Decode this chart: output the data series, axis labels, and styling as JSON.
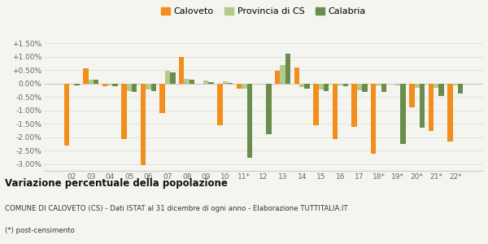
{
  "categories": [
    "02",
    "03",
    "04",
    "05",
    "06",
    "07",
    "08",
    "09",
    "10",
    "11*",
    "12",
    "13",
    "14",
    "15",
    "16",
    "17",
    "18*",
    "19*",
    "20*",
    "21*",
    "22*"
  ],
  "caloveto": [
    -2.3,
    0.57,
    -0.1,
    -2.07,
    -3.05,
    -1.1,
    1.0,
    -0.02,
    -1.55,
    -0.2,
    0.0,
    0.48,
    0.6,
    -1.55,
    -2.07,
    -1.6,
    -2.6,
    0.0,
    -0.9,
    -1.75,
    -2.15
  ],
  "provincia": [
    -0.05,
    0.14,
    -0.08,
    -0.27,
    -0.22,
    0.48,
    0.18,
    0.12,
    0.08,
    -0.18,
    -0.03,
    0.68,
    -0.13,
    -0.22,
    -0.08,
    -0.25,
    -0.07,
    -0.07,
    -0.17,
    -0.15,
    -0.08
  ],
  "calabria": [
    -0.07,
    0.15,
    -0.09,
    -0.3,
    -0.28,
    0.42,
    0.13,
    0.05,
    0.03,
    -2.75,
    -1.88,
    1.1,
    -0.2,
    -0.28,
    -0.1,
    -0.3,
    -0.3,
    -2.25,
    -1.65,
    -0.45,
    -0.38
  ],
  "color_caloveto": "#f28e1c",
  "color_provincia": "#b5c98a",
  "color_calabria": "#6b8c4e",
  "title": "Variazione percentuale della popolazione",
  "subtitle": "COMUNE DI CALOVETO (CS) - Dati ISTAT al 31 dicembre di ogni anno - Elaborazione TUTTITALIA.IT",
  "footnote": "(*) post-censimento",
  "ylim_min": -3.25,
  "ylim_max": 1.75,
  "yticks": [
    -3.0,
    -2.5,
    -2.0,
    -1.5,
    -1.0,
    -0.5,
    0.0,
    0.5,
    1.0,
    1.5
  ],
  "ytick_labels": [
    "-3.00%",
    "-2.50%",
    "-2.00%",
    "-1.50%",
    "-1.00%",
    "-0.50%",
    "0.00%",
    "+0.50%",
    "+1.00%",
    "+1.50%"
  ],
  "bg_color": "#f5f5f0",
  "legend_labels": [
    "Caloveto",
    "Provincia di CS",
    "Calabria"
  ]
}
